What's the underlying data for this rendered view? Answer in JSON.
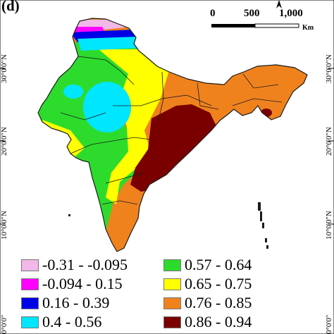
{
  "panel_label": "(d)",
  "latitude_labels": [
    "30°0'0\"N",
    "20°0'0\"N",
    "10°0'0\"N",
    "0°0'0\""
  ],
  "scale_bar": {
    "ticks": [
      "0",
      "500",
      "1,000"
    ],
    "unit": "Km"
  },
  "legend": [
    {
      "label": "-0.31 - -0.095",
      "color": "#f2b8e8"
    },
    {
      "label": "-0.094 - 0.15",
      "color": "#ff00ff"
    },
    {
      "label": "0.16 - 0.39",
      "color": "#0000e6"
    },
    {
      "label": "0.4 - 0.56",
      "color": "#00e6ff"
    },
    {
      "label": "0.57 - 0.64",
      "color": "#2ddb2d"
    },
    {
      "label": "0.65 - 0.75",
      "color": "#ffff00"
    },
    {
      "label": "0.76 - 0.85",
      "color": "#f0821e"
    },
    {
      "label": "0.86 - 0.94",
      "color": "#7a0000"
    }
  ],
  "colors": {
    "border": "#1a1a1a",
    "background": "#ffffff"
  }
}
